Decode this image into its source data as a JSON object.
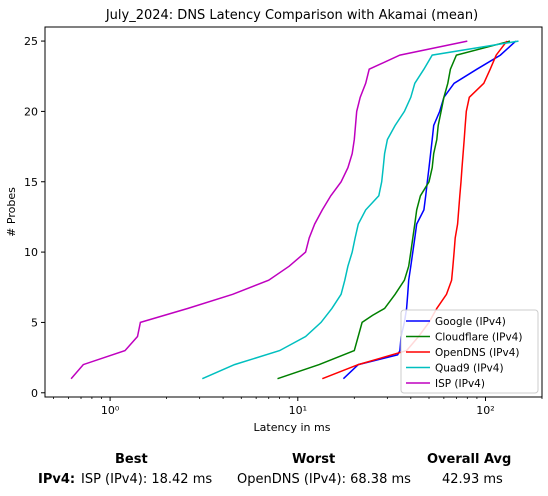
{
  "chart_data": {
    "type": "line",
    "title": "July_2024: DNS Latency Comparison with Akamai (mean)",
    "xlabel": "Latency in ms",
    "ylabel": "# Probes",
    "xscale": "log",
    "xlim": [
      0.45,
      200
    ],
    "ylim": [
      -0.3,
      26
    ],
    "xticks": [
      {
        "value": 1,
        "label": "10⁰"
      },
      {
        "value": 10,
        "label": "10¹"
      },
      {
        "value": 100,
        "label": "10²"
      }
    ],
    "yticks": [
      0,
      5,
      10,
      15,
      20,
      25
    ],
    "grid": false,
    "legend_position": "bottom-right",
    "series": [
      {
        "name": "Google (IPv4)",
        "color": "#0000ff",
        "points": [
          [
            17.5,
            1
          ],
          [
            21,
            2
          ],
          [
            34,
            2.7
          ],
          [
            35,
            3
          ],
          [
            35.5,
            4
          ],
          [
            37,
            5
          ],
          [
            38,
            6
          ],
          [
            38.5,
            7
          ],
          [
            39,
            8
          ],
          [
            40,
            9
          ],
          [
            41,
            10
          ],
          [
            42,
            11
          ],
          [
            43,
            12
          ],
          [
            47,
            13
          ],
          [
            48,
            14
          ],
          [
            49,
            15
          ],
          [
            50,
            16
          ],
          [
            51,
            17
          ],
          [
            52,
            18
          ],
          [
            53,
            19
          ],
          [
            57,
            20
          ],
          [
            60,
            21
          ],
          [
            68,
            22
          ],
          [
            90,
            23
          ],
          [
            120,
            24
          ],
          [
            145,
            25
          ]
        ]
      },
      {
        "name": "Cloudflare (IPv4)",
        "color": "#008000",
        "points": [
          [
            7.8,
            1
          ],
          [
            13,
            2
          ],
          [
            20,
            3
          ],
          [
            22,
            5
          ],
          [
            25,
            5.5
          ],
          [
            29,
            6
          ],
          [
            33,
            7
          ],
          [
            37,
            8
          ],
          [
            39,
            9
          ],
          [
            40,
            10
          ],
          [
            41,
            11
          ],
          [
            42,
            12
          ],
          [
            43,
            13
          ],
          [
            45,
            14
          ],
          [
            50,
            15
          ],
          [
            52,
            16
          ],
          [
            53,
            17
          ],
          [
            55,
            18
          ],
          [
            56,
            19
          ],
          [
            58,
            20
          ],
          [
            60,
            21
          ],
          [
            63,
            22
          ],
          [
            65,
            23
          ],
          [
            70,
            24
          ],
          [
            135,
            25
          ]
        ]
      },
      {
        "name": "OpenDNS (IPv4)",
        "color": "#ff0000",
        "points": [
          [
            13.5,
            1
          ],
          [
            21,
            2
          ],
          [
            38,
            3
          ],
          [
            44,
            4
          ],
          [
            50,
            5
          ],
          [
            55,
            6
          ],
          [
            62,
            7
          ],
          [
            66,
            8
          ],
          [
            67,
            9
          ],
          [
            68,
            10
          ],
          [
            69,
            11
          ],
          [
            71,
            12
          ],
          [
            72,
            13
          ],
          [
            73,
            14
          ],
          [
            74,
            15
          ],
          [
            75,
            16
          ],
          [
            76,
            17
          ],
          [
            77,
            18
          ],
          [
            78,
            19
          ],
          [
            79,
            20
          ],
          [
            82,
            21
          ],
          [
            98,
            22
          ],
          [
            106,
            23
          ],
          [
            114,
            24
          ],
          [
            130,
            25
          ]
        ]
      },
      {
        "name": "Quad9 (IPv4)",
        "color": "#00bfbf",
        "points": [
          [
            3.1,
            1
          ],
          [
            4.6,
            2
          ],
          [
            8,
            3
          ],
          [
            11,
            4
          ],
          [
            13.3,
            5
          ],
          [
            15.2,
            6
          ],
          [
            17,
            7
          ],
          [
            17.8,
            8
          ],
          [
            18.5,
            9
          ],
          [
            19.5,
            10
          ],
          [
            20.2,
            11
          ],
          [
            21,
            12
          ],
          [
            23,
            13
          ],
          [
            27,
            14
          ],
          [
            28,
            15
          ],
          [
            28.5,
            16
          ],
          [
            29,
            17
          ],
          [
            30,
            18
          ],
          [
            33,
            19
          ],
          [
            37,
            20
          ],
          [
            40,
            21
          ],
          [
            42,
            22
          ],
          [
            47,
            23
          ],
          [
            52,
            24
          ],
          [
            150,
            25
          ]
        ]
      },
      {
        "name": "ISP (IPv4)",
        "color": "#bf00bf",
        "points": [
          [
            0.62,
            1
          ],
          [
            0.72,
            2
          ],
          [
            1.2,
            3
          ],
          [
            1.4,
            4
          ],
          [
            1.45,
            5
          ],
          [
            2.6,
            6
          ],
          [
            4.5,
            7
          ],
          [
            7,
            8
          ],
          [
            9,
            9
          ],
          [
            11,
            10
          ],
          [
            11.5,
            11
          ],
          [
            12.3,
            12
          ],
          [
            13.5,
            13
          ],
          [
            15,
            14
          ],
          [
            17,
            15
          ],
          [
            18.5,
            16
          ],
          [
            19.5,
            17
          ],
          [
            20,
            18
          ],
          [
            20.3,
            19
          ],
          [
            20.6,
            20
          ],
          [
            21.5,
            21
          ],
          [
            23,
            22
          ],
          [
            24,
            23
          ],
          [
            35,
            24
          ],
          [
            80,
            25
          ]
        ]
      }
    ]
  },
  "summary": {
    "headers": {
      "best": "Best",
      "worst": "Worst",
      "avg": "Overall Avg"
    },
    "row_label": "IPv4",
    "best": "ISP (IPv4): 18.42 ms",
    "worst": "OpenDNS (IPv4): 68.38 ms",
    "avg": "42.93 ms"
  }
}
